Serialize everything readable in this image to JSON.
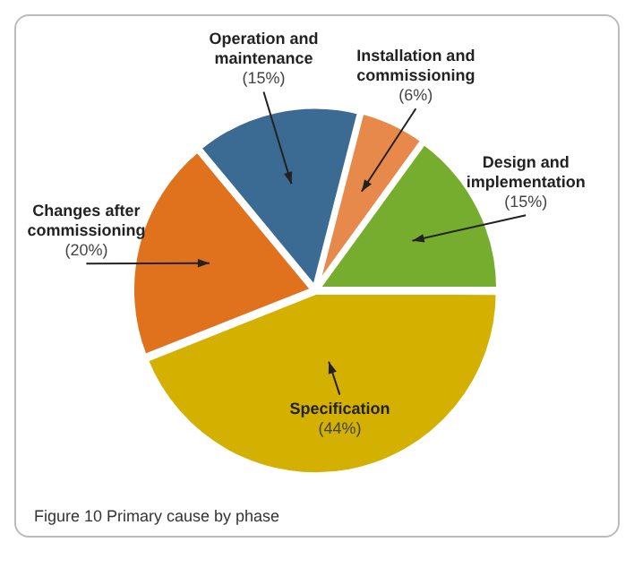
{
  "chart_data": {
    "type": "pie",
    "title": "Figure 10 Primary cause by phase",
    "categories": [
      "Specification",
      "Changes after commissioning",
      "Operation and maintenance",
      "Installation and commissioning",
      "Design and implementation"
    ],
    "values": [
      44,
      20,
      15,
      6,
      15
    ],
    "value_labels": [
      "(44%)",
      "(20%)",
      "(15%)",
      "(6%)",
      "(15%)"
    ],
    "colors": [
      "#d4b000",
      "#e0721e",
      "#3b6b92",
      "#e8894c",
      "#77ad2e"
    ],
    "legend": false
  }
}
